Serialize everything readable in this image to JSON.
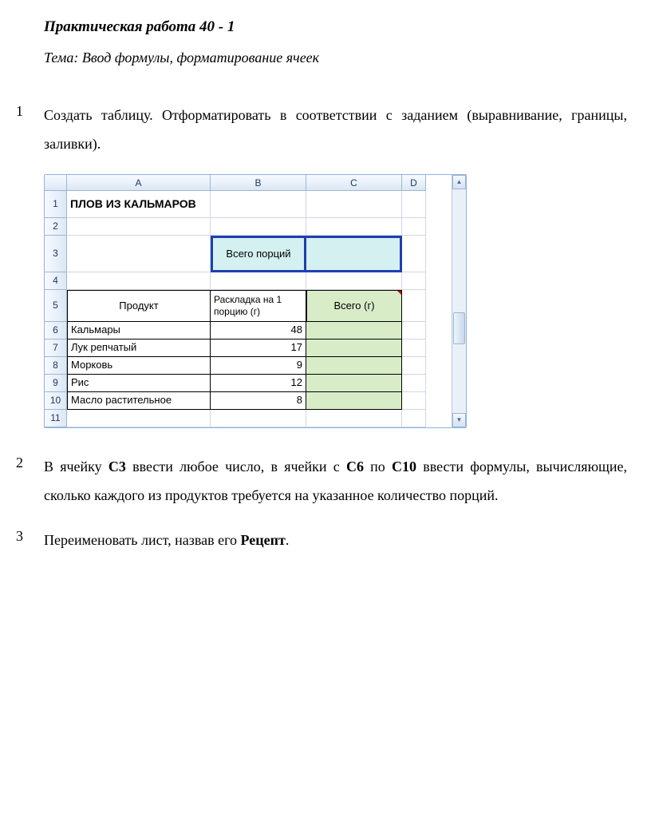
{
  "doc": {
    "title": "Практическая работа 40 - 1",
    "theme": "Тема: Ввод формулы, форматирование ячеек"
  },
  "tasks": {
    "t1_num": "1",
    "t1_text": "Создать таблицу. Отформатировать в соответствии с заданием (выравнивание, границы, заливки).",
    "t2_num": "2",
    "t2_p1": "В ячейку ",
    "t2_b1": "С3",
    "t2_p2": " ввести любое число, в ячейки с ",
    "t2_b2": "С6",
    "t2_p3": " по ",
    "t2_b3": "С10",
    "t2_p4": " ввести формулы, вычисляющие, сколько каждого из продуктов требуется на указанное количество порций.",
    "t3_num": "3",
    "t3_p1": "Переименовать лист, назвав его ",
    "t3_b1": "Рецепт",
    "t3_p2": "."
  },
  "excel": {
    "cols": {
      "a": "A",
      "b": "B",
      "c": "C",
      "d": "D"
    },
    "rownums": {
      "r1": "1",
      "r2": "2",
      "r3": "3",
      "r4": "4",
      "r5": "5",
      "r6": "6",
      "r7": "7",
      "r8": "8",
      "r9": "9",
      "r10": "10",
      "r11": "11"
    },
    "a1": "ПЛОВ ИЗ КАЛЬМАРОВ",
    "b3": "Всего порций",
    "a5": "Продукт",
    "b5": "Раскладка на 1 порцию (г)",
    "c5": "Всего (г)",
    "products": {
      "p6_name": "Кальмары",
      "p6_val": "48",
      "p7_name": "Лук репчатый",
      "p7_val": "17",
      "p8_name": "Морковь",
      "p8_val": "9",
      "p9_name": "Рис",
      "p9_val": "12",
      "p10_name": "Масло растительное",
      "p10_val": "8"
    },
    "scroll": {
      "up": "▲",
      "down": "▼"
    }
  }
}
